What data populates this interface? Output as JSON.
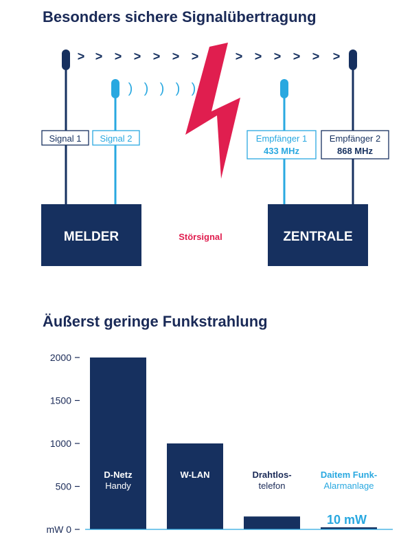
{
  "diagram": {
    "title": "Besonders sichere Signalübertragung",
    "colors": {
      "navy": "#16305f",
      "light_blue": "#29a8e0",
      "red": "#e01e4f"
    },
    "signal_1_label": "Signal 1",
    "signal_2_label": "Signal 2",
    "receiver_1": {
      "name": "Empfänger 1",
      "frequency": "433 MHz"
    },
    "receiver_2": {
      "name": "Empfänger 2",
      "frequency": "868 MHz"
    },
    "melder_label": "MELDER",
    "zentrale_label": "ZENTRALE",
    "interference_label": "Störsignal",
    "chevron_glyph": ">",
    "wave_glyph": ")"
  },
  "chart_data": {
    "type": "bar",
    "title": "Äußerst geringe Funkstrahlung",
    "unit_label": "mW",
    "ylim": [
      0,
      2000
    ],
    "yticks": [
      0,
      500,
      1000,
      1500,
      2000
    ],
    "categories": [
      {
        "line1": "D-Netz",
        "line2": "Handy",
        "value": 2000,
        "label_color": "#ffffff"
      },
      {
        "line1": "W-LAN",
        "line2": "",
        "value": 1000,
        "label_color": "#ffffff"
      },
      {
        "line1": "Drahtlos-",
        "line2": "telefon",
        "value": 150,
        "label_color": "#1a2a57"
      },
      {
        "line1": "Daitem Funk-",
        "line2": "Alarmanlage",
        "value": 10,
        "label_color": "#29a8e0"
      }
    ],
    "value_annotation": "10 mW",
    "bar_color": "#16305f"
  }
}
